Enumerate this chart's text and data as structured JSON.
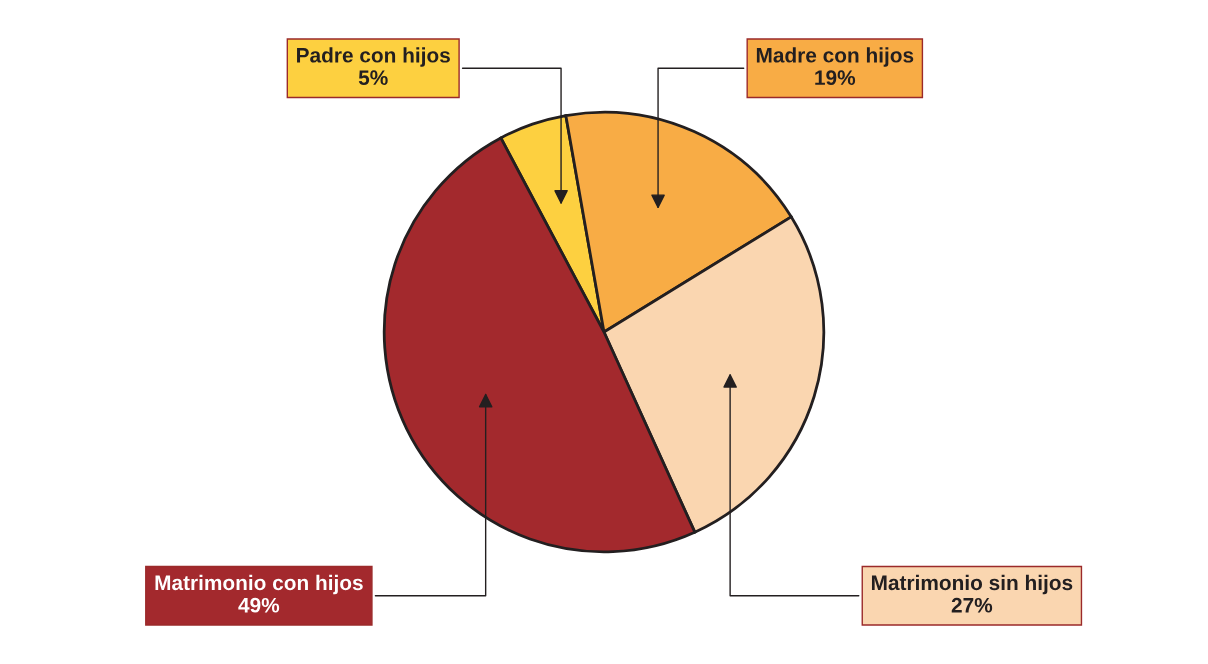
{
  "chart_data": {
    "type": "pie",
    "categories": [
      "Padre con hijos",
      "Madre con hijos",
      "Matrimonio sin hijos",
      "Matrimonio con hijos"
    ],
    "values": [
      5,
      19,
      27,
      49
    ],
    "value_labels": [
      "5%",
      "19%",
      "27%",
      "49%"
    ],
    "colors": [
      "#fdd040",
      "#f8ac45",
      "#fad6b0",
      "#a3292d"
    ],
    "legend": false
  }
}
